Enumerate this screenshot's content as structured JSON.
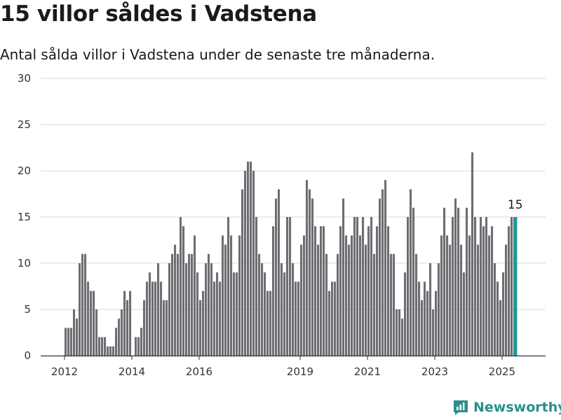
{
  "header": {
    "title": "15 villor såldes i Vadstena",
    "subtitle": "Antal sålda villor i Vadstena under de senaste tre månaderna."
  },
  "brand": {
    "name": "Newsworthy",
    "logo_icon": "newsworthy-logo-icon"
  },
  "colors": {
    "bar": "#6e6d72",
    "highlight": "#1f9a96",
    "grid": "#d9d9d9",
    "axis": "#333333"
  },
  "chart_data": {
    "type": "bar",
    "title": "15 villor såldes i Vadstena",
    "subtitle": "Antal sålda villor i Vadstena under de senaste tre månaderna.",
    "xlabel": "",
    "ylabel": "",
    "ylim": [
      0,
      30
    ],
    "yticks": [
      0,
      5,
      10,
      15,
      20,
      25,
      30
    ],
    "xticks": [
      2012,
      2014,
      2016,
      2019,
      2021,
      2023,
      2025
    ],
    "x_start": "2012-01",
    "frequency": "monthly",
    "grid": true,
    "highlight_label": "15",
    "values": [
      3,
      3,
      3,
      5,
      4,
      10,
      11,
      11,
      8,
      7,
      7,
      5,
      2,
      2,
      2,
      1,
      1,
      1,
      3,
      4,
      5,
      7,
      6,
      7,
      0,
      2,
      2,
      3,
      6,
      8,
      9,
      8,
      8,
      10,
      8,
      6,
      6,
      10,
      11,
      12,
      11,
      15,
      14,
      10,
      11,
      11,
      13,
      9,
      6,
      7,
      10,
      11,
      10,
      8,
      9,
      8,
      13,
      12,
      15,
      13,
      9,
      9,
      13,
      18,
      20,
      21,
      21,
      20,
      15,
      11,
      10,
      9,
      7,
      7,
      14,
      17,
      18,
      10,
      9,
      15,
      15,
      10,
      8,
      8,
      12,
      13,
      19,
      18,
      17,
      14,
      12,
      14,
      14,
      11,
      7,
      8,
      8,
      11,
      14,
      17,
      13,
      12,
      13,
      15,
      15,
      13,
      15,
      12,
      14,
      15,
      11,
      14,
      17,
      18,
      19,
      14,
      11,
      11,
      5,
      5,
      4,
      9,
      15,
      18,
      16,
      11,
      8,
      6,
      8,
      7,
      10,
      5,
      7,
      10,
      13,
      16,
      13,
      12,
      15,
      17,
      16,
      12,
      9,
      16,
      13,
      22,
      15,
      12,
      15,
      14,
      15,
      13,
      14,
      10,
      8,
      6,
      9,
      12,
      14,
      15,
      15
    ]
  }
}
